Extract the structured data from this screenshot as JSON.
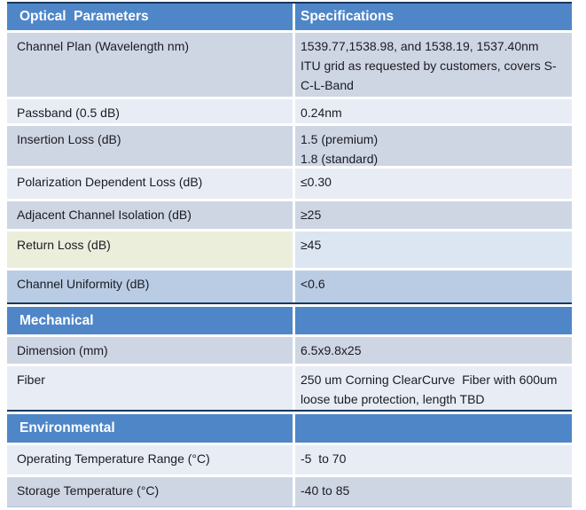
{
  "table": {
    "column_headers": {
      "parameters": "Optical  Parameters",
      "specifications": "Specifications"
    },
    "optical": {
      "rows": [
        {
          "param": "Channel Plan (Wavelength nm)",
          "value": "1539.77,1538.98, and 1538.19, 1537.40nm\nITU grid as requested by customers, covers S-\nC-L-Band"
        },
        {
          "param": "Passband (0.5 dB)",
          "value": "0.24nm"
        },
        {
          "param": "Insertion Loss (dB)",
          "value": "1.5 (premium)\n1.8 (standard)"
        },
        {
          "param": "Polarization Dependent Loss (dB)",
          "value": "≤0.30"
        },
        {
          "param": "Adjacent Channel Isolation (dB)",
          "value": "≥25"
        },
        {
          "param": "Return Loss (dB)",
          "value": "≥45"
        },
        {
          "param": "Channel Uniformity (dB)",
          "value": "<0.6"
        }
      ]
    },
    "mechanical": {
      "header": "Mechanical",
      "rows": [
        {
          "param": "Dimension (mm)",
          "value": "6.5x9.8x25"
        },
        {
          "param": "Fiber",
          "value": "250 um Corning ClearCurve  Fiber with 600um\nloose tube protection, length TBD"
        }
      ]
    },
    "environmental": {
      "header": "Environmental",
      "rows": [
        {
          "param": "Operating Temperature Range (°C)",
          "value": "-5  to 70"
        },
        {
          "param": "Storage Temperature (°C)",
          "value": "-40 to 85"
        }
      ]
    },
    "colors": {
      "header_bg": "#4f86c8",
      "row_dark": "#ced6e4",
      "row_light": "#e8ecf4",
      "uniformity_row_bg": "#b9cce3",
      "return_loss_param_bg": "#ebeedb",
      "return_loss_value_bg": "#dce6f2",
      "section_border": "#17375e",
      "text": "#1b1b22"
    }
  }
}
